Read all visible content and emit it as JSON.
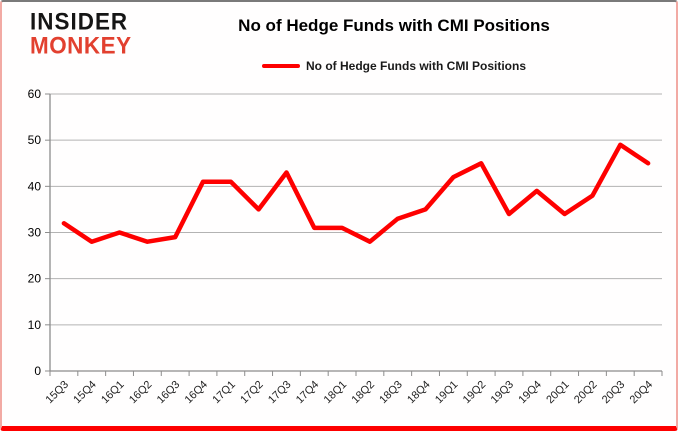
{
  "logo": {
    "line1": "INSIDER",
    "line2": "MONKEY"
  },
  "header": {
    "title": "No of Hedge Funds with CMI Positions"
  },
  "legend": {
    "label": "No of Hedge Funds with CMI Positions",
    "swatch_color": "#fe0000"
  },
  "colors": {
    "line": "#fe0000",
    "logo_accent": "#e2402f",
    "grid": "#b3b3b3",
    "axis": "#8c8c8c",
    "border_bottom": "#fe0000"
  },
  "chart_data": {
    "type": "line",
    "title": "No of Hedge Funds with CMI Positions",
    "categories": [
      "15Q3",
      "15Q4",
      "16Q1",
      "16Q2",
      "16Q3",
      "16Q4",
      "17Q1",
      "17Q2",
      "17Q3",
      "17Q4",
      "18Q1",
      "18Q2",
      "18Q3",
      "18Q4",
      "19Q1",
      "19Q2",
      "19Q3",
      "19Q4",
      "20Q1",
      "20Q2",
      "20Q3",
      "20Q4"
    ],
    "series": [
      {
        "name": "No of Hedge Funds with CMI Positions",
        "color": "#fe0000",
        "values": [
          32,
          28,
          30,
          28,
          29,
          41,
          41,
          35,
          43,
          31,
          31,
          28,
          33,
          35,
          42,
          45,
          34,
          39,
          34,
          38,
          49,
          45
        ]
      }
    ],
    "xlabel": "",
    "ylabel": "",
    "ylim": [
      0,
      60
    ],
    "yticks": [
      0,
      10,
      20,
      30,
      40,
      50,
      60
    ],
    "grid": true,
    "legend_position": "top"
  }
}
